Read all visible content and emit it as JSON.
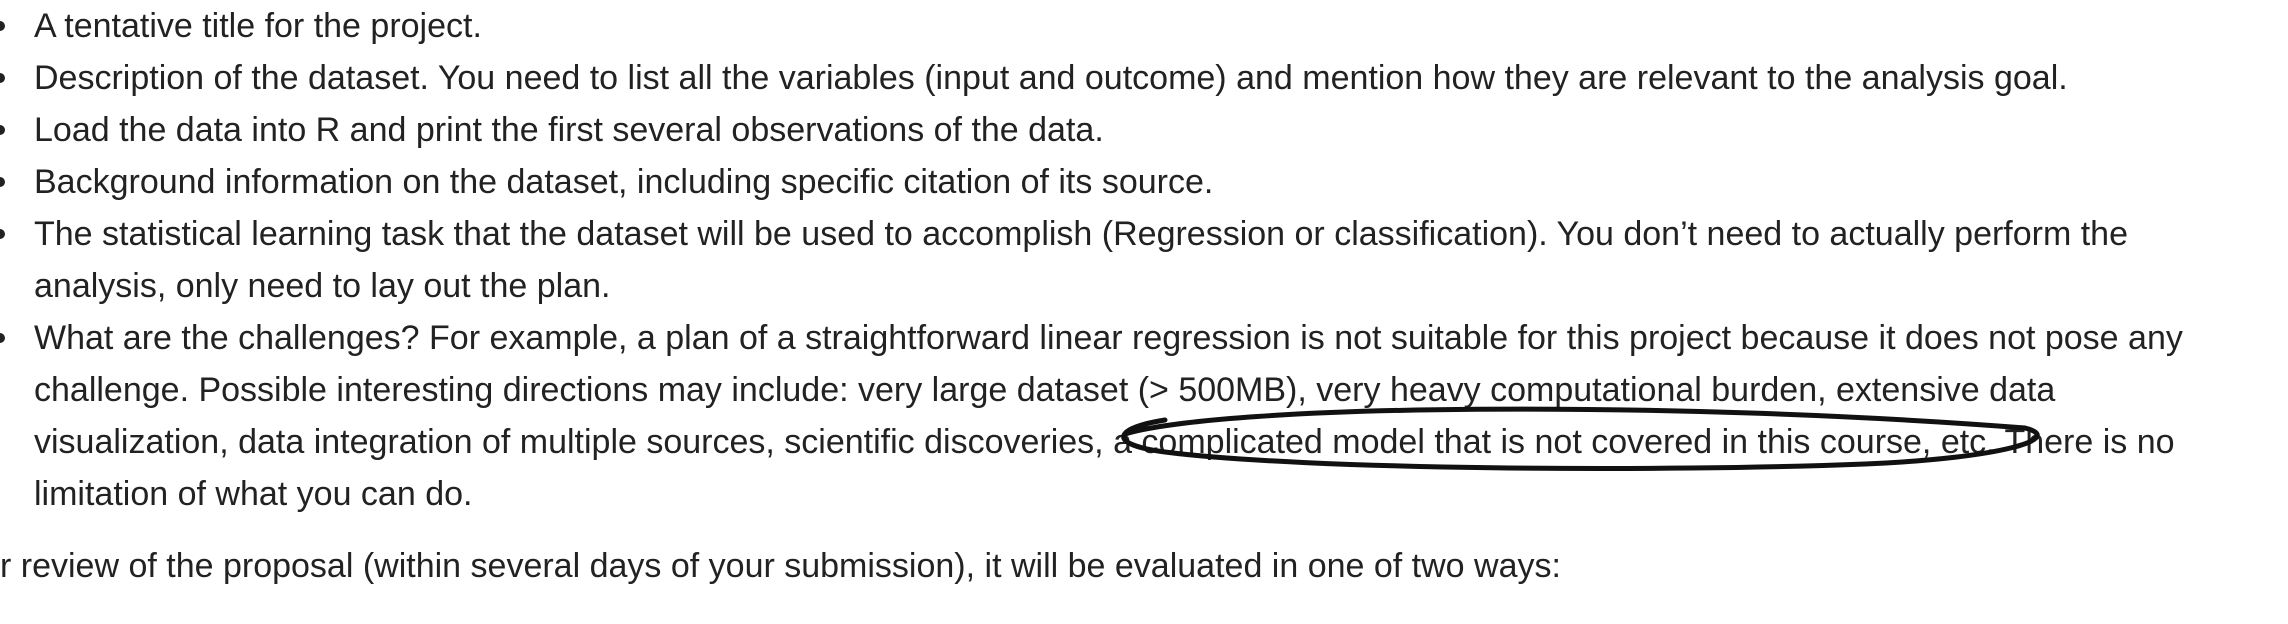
{
  "items": [
    "A tentative title for the project.",
    "Description of the dataset. You need to list all the variables (input and outcome) and mention how they are relevant to the analysis goal.",
    "Load the data into R and print the first several observations of the data.",
    "Background information on the dataset, including specific citation of its source.",
    "The statistical learning task that the dataset will be used to accomplish (Regression or classification). You don’t need to actually perform the analysis, only need to lay out the plan.",
    "What are the challenges? For example, a plan of a straightforward linear regression is not suitable for this project because it does not pose any challenge. Possible interesting directions may include: very large dataset (> 500MB), very heavy computational burden, extensive data visualization, data integration of multiple sources, scientific discoveries, a complicated model that is not covered in this course, etc. There is no limitation of what you can do."
  ],
  "trailing_text": "r review of the proposal (within several days of your submission), it will be evaluated in one of two ways:",
  "colors": {
    "text": "#222222",
    "annotation_stroke": "#111111"
  }
}
